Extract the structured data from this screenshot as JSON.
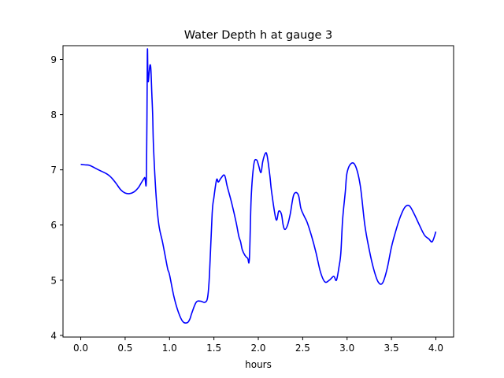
{
  "chart_data": {
    "type": "line",
    "title": "Water Depth h at gauge 3",
    "xlabel": "hours",
    "ylabel": "",
    "xlim": [
      -0.2,
      4.2
    ],
    "ylim": [
      3.97,
      9.25
    ],
    "xticks": [
      0.0,
      0.5,
      1.0,
      1.5,
      2.0,
      2.5,
      3.0,
      3.5,
      4.0
    ],
    "xtick_labels": [
      "0.0",
      "0.5",
      "1.0",
      "1.5",
      "2.0",
      "2.5",
      "3.0",
      "3.5",
      "4.0"
    ],
    "yticks": [
      4,
      5,
      6,
      7,
      8,
      9
    ],
    "ytick_labels": [
      "4",
      "5",
      "6",
      "7",
      "8",
      "9"
    ],
    "grid": false,
    "legend": "none",
    "series": [
      {
        "color": "#0000ff",
        "x": [
          0.0,
          0.05,
          0.1,
          0.2,
          0.3,
          0.35,
          0.4,
          0.45,
          0.5,
          0.55,
          0.6,
          0.65,
          0.68,
          0.72,
          0.74,
          0.75,
          0.755,
          0.76,
          0.77,
          0.78,
          0.79,
          0.8,
          0.81,
          0.82,
          0.85,
          0.88,
          0.92,
          0.95,
          0.98,
          1.0,
          1.05,
          1.1,
          1.15,
          1.2,
          1.23,
          1.25,
          1.3,
          1.35,
          1.4,
          1.43,
          1.45,
          1.48,
          1.5,
          1.53,
          1.55,
          1.58,
          1.62,
          1.65,
          1.7,
          1.75,
          1.78,
          1.8,
          1.82,
          1.85,
          1.88,
          1.9,
          1.92,
          1.95,
          1.98,
          2.0,
          2.03,
          2.05,
          2.08,
          2.1,
          2.13,
          2.15,
          2.2,
          2.23,
          2.26,
          2.28,
          2.3,
          2.33,
          2.36,
          2.4,
          2.45,
          2.48,
          2.52,
          2.55,
          2.6,
          2.65,
          2.7,
          2.75,
          2.8,
          2.85,
          2.88,
          2.91,
          2.93,
          2.95,
          2.98,
          3.0,
          3.05,
          3.1,
          3.15,
          3.2,
          3.25,
          3.3,
          3.35,
          3.4,
          3.45,
          3.5,
          3.55,
          3.6,
          3.65,
          3.7,
          3.75,
          3.8,
          3.85,
          3.88,
          3.92,
          3.96,
          4.0
        ],
        "y": [
          7.1,
          7.09,
          7.08,
          7.0,
          6.92,
          6.85,
          6.75,
          6.64,
          6.58,
          6.57,
          6.6,
          6.68,
          6.76,
          6.86,
          6.88,
          9.07,
          8.85,
          8.6,
          8.75,
          8.9,
          8.82,
          8.4,
          8.0,
          7.4,
          6.5,
          6.0,
          5.7,
          5.45,
          5.2,
          5.1,
          4.7,
          4.42,
          4.25,
          4.23,
          4.3,
          4.4,
          4.6,
          4.62,
          4.6,
          4.7,
          5.1,
          6.2,
          6.5,
          6.82,
          6.78,
          6.85,
          6.9,
          6.7,
          6.4,
          6.05,
          5.8,
          5.7,
          5.55,
          5.45,
          5.4,
          5.4,
          6.5,
          7.1,
          7.18,
          7.1,
          6.95,
          7.15,
          7.3,
          7.25,
          6.9,
          6.6,
          6.1,
          6.25,
          6.2,
          6.0,
          5.92,
          6.0,
          6.2,
          6.55,
          6.55,
          6.3,
          6.15,
          6.05,
          5.8,
          5.5,
          5.15,
          4.97,
          5.0,
          5.07,
          5.0,
          5.25,
          5.5,
          6.1,
          6.6,
          6.95,
          7.12,
          7.05,
          6.7,
          6.0,
          5.55,
          5.2,
          4.97,
          4.95,
          5.2,
          5.6,
          5.9,
          6.15,
          6.32,
          6.35,
          6.22,
          6.05,
          5.88,
          5.8,
          5.75,
          5.7,
          5.88
        ]
      }
    ]
  }
}
